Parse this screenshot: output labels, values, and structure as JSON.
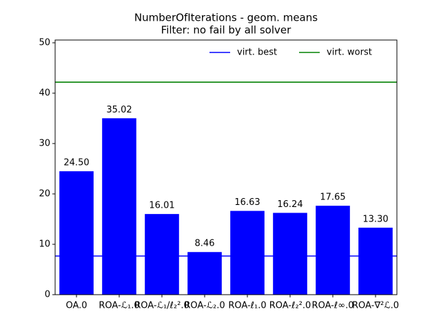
{
  "chart_data": {
    "type": "bar",
    "title": "NumberOfIterations - geom. means",
    "subtitle": "Filter: no fail by all solver",
    "categories": [
      "OA.0",
      "ROA-ℒ₁.0",
      "ROA-ℒ₁/ℓ₂².0",
      "ROA-ℒ₂.0",
      "ROA-ℓ₁.0",
      "ROA-ℓ₂².0",
      "ROA-ℓ∞.0",
      "ROA-∇²ℒ.0"
    ],
    "values": [
      24.5,
      35.02,
      16.01,
      8.46,
      16.63,
      16.24,
      17.65,
      13.3
    ],
    "value_labels": [
      "24.50",
      "35.02",
      "16.01",
      "8.46",
      "16.63",
      "16.24",
      "17.65",
      "13.30"
    ],
    "color": "#0000ff",
    "hlines": [
      {
        "name": "virt. best",
        "color": "#0000ff",
        "value": 7.67
      },
      {
        "name": "virt. worst",
        "color": "#008000",
        "value": 42.19
      }
    ],
    "legend": "upper right",
    "ylim": [
      0,
      50.55
    ],
    "yticks": [
      0,
      10,
      20,
      30,
      40,
      50
    ],
    "grid": false
  }
}
